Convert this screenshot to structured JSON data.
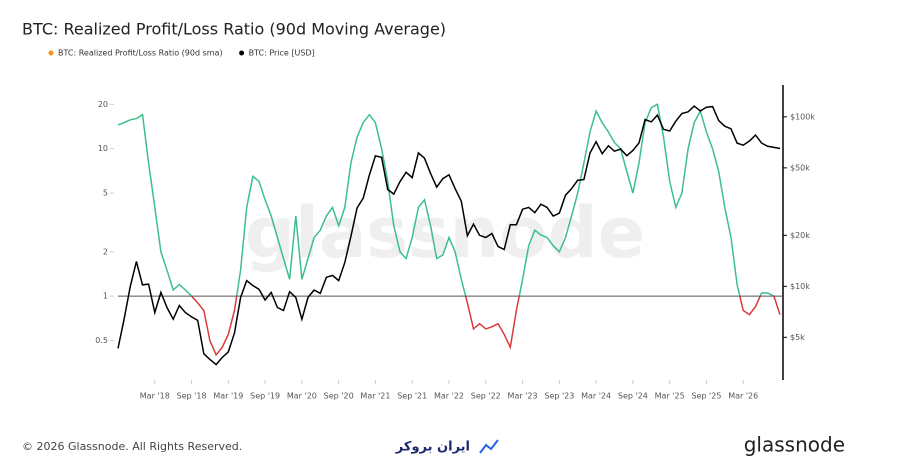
{
  "chart_data": {
    "type": "line",
    "title": "BTC: Realized Profit/Loss Ratio (90d Moving Average)",
    "watermark": "glassnode",
    "footer": "© 2026 Glassnode. All Rights Reserved.",
    "partner": "ایران بروکر",
    "brand": "glassnode",
    "x": [
      "2017-09",
      "2017-10",
      "2017-11",
      "2017-12",
      "2018-01",
      "2018-02",
      "2018-03",
      "2018-04",
      "2018-05",
      "2018-06",
      "2018-07",
      "2018-08",
      "2018-09",
      "2018-10",
      "2018-11",
      "2018-12",
      "2019-01",
      "2019-02",
      "2019-03",
      "2019-04",
      "2019-05",
      "2019-06",
      "2019-07",
      "2019-08",
      "2019-09",
      "2019-10",
      "2019-11",
      "2019-12",
      "2020-01",
      "2020-02",
      "2020-03",
      "2020-04",
      "2020-05",
      "2020-06",
      "2020-07",
      "2020-08",
      "2020-09",
      "2020-10",
      "2020-11",
      "2020-12",
      "2021-01",
      "2021-02",
      "2021-03",
      "2021-04",
      "2021-05",
      "2021-06",
      "2021-07",
      "2021-08",
      "2021-09",
      "2021-10",
      "2021-11",
      "2021-12",
      "2022-01",
      "2022-02",
      "2022-03",
      "2022-04",
      "2022-05",
      "2022-06",
      "2022-07",
      "2022-08",
      "2022-09",
      "2022-10",
      "2022-11",
      "2022-12",
      "2023-01",
      "2023-02",
      "2023-03",
      "2023-04",
      "2023-05",
      "2023-06",
      "2023-07",
      "2023-08",
      "2023-09",
      "2023-10",
      "2023-11",
      "2023-12",
      "2024-01",
      "2024-02",
      "2024-03",
      "2024-04",
      "2024-05",
      "2024-06",
      "2024-07",
      "2024-08",
      "2024-09",
      "2024-10",
      "2024-11",
      "2024-12",
      "2025-01",
      "2025-02",
      "2025-03",
      "2025-04",
      "2025-05",
      "2025-06",
      "2025-07",
      "2025-08",
      "2025-09",
      "2025-10",
      "2025-11",
      "2025-12",
      "2026-01",
      "2026-02",
      "2026-03",
      "2026-04",
      "2026-05",
      "2026-06",
      "2026-07",
      "2026-08",
      "2026-09"
    ],
    "series": [
      {
        "name": "BTC: Realized Profit/Loss Ratio (90d sma)",
        "color": "#f7931a",
        "line_color_above": "#3cbf8a",
        "line_color_below": "#d93a3a",
        "threshold": 1,
        "values": [
          14.5,
          15,
          15.7,
          16,
          17,
          8,
          4,
          2,
          1.5,
          1.1,
          1.2,
          1.1,
          1.0,
          0.9,
          0.8,
          0.5,
          0.4,
          0.45,
          0.55,
          0.8,
          1.5,
          4,
          6.5,
          6,
          4.5,
          3.5,
          2.5,
          1.8,
          1.3,
          3.5,
          1.3,
          1.8,
          2.5,
          2.8,
          3.5,
          4,
          3,
          4,
          8,
          12,
          15,
          17,
          15,
          10,
          6,
          3,
          2.0,
          1.8,
          2.5,
          4,
          4.5,
          3,
          1.8,
          1.9,
          2.5,
          2,
          1.3,
          0.9,
          0.6,
          0.65,
          0.6,
          0.62,
          0.65,
          0.55,
          0.45,
          0.8,
          1.3,
          2.2,
          2.8,
          2.6,
          2.5,
          2.2,
          2.0,
          2.5,
          3.5,
          5,
          8,
          13,
          18,
          15,
          13,
          11,
          10,
          7,
          5,
          8,
          15,
          19,
          20,
          12,
          6,
          4,
          5,
          10,
          15,
          18,
          13,
          10,
          7,
          4,
          2.5,
          1.2,
          0.8,
          0.75,
          0.85,
          1.05,
          1.05,
          1.0,
          0.75
        ]
      },
      {
        "name": "BTC: Price [USD]",
        "color": "#000000",
        "axis": "y2",
        "values": [
          4300,
          6400,
          10000,
          14000,
          10200,
          10300,
          7000,
          9200,
          7500,
          6400,
          7700,
          7000,
          6600,
          6300,
          4000,
          3700,
          3450,
          3800,
          4100,
          5300,
          8600,
          10800,
          10100,
          9600,
          8300,
          9200,
          7500,
          7200,
          9300,
          8600,
          6400,
          8600,
          9500,
          9100,
          11300,
          11600,
          10800,
          13800,
          19700,
          29000,
          33100,
          45200,
          58800,
          57700,
          37300,
          35000,
          41500,
          47100,
          43800,
          61300,
          57000,
          46300,
          38500,
          43200,
          45500,
          37700,
          31800,
          19900,
          23300,
          20000,
          19400,
          20500,
          17200,
          16500,
          23100,
          23100,
          28500,
          29200,
          27200,
          30500,
          29200,
          26000,
          27000,
          34500,
          37700,
          42300,
          42600,
          61200,
          71300,
          60600,
          67500,
          62700,
          64600,
          59000,
          63300,
          70200,
          96400,
          93400,
          102400,
          84400,
          82500,
          94200,
          104600,
          107100,
          115700,
          108200,
          114000,
          115000,
          95000,
          88000,
          85000,
          70000,
          68000,
          72000,
          78000,
          70000,
          67000,
          66000,
          65000
        ]
      }
    ],
    "xlim": [
      "2017-09",
      "2026-09"
    ],
    "xticks": [
      {
        "value": "2018-03",
        "label": "Mar '18"
      },
      {
        "value": "2018-09",
        "label": "Sep '18"
      },
      {
        "value": "2019-03",
        "label": "Mar '19"
      },
      {
        "value": "2019-09",
        "label": "Sep '19"
      },
      {
        "value": "2020-03",
        "label": "Mar '20"
      },
      {
        "value": "2020-09",
        "label": "Sep '20"
      },
      {
        "value": "2021-03",
        "label": "Mar '21"
      },
      {
        "value": "2021-09",
        "label": "Sep '21"
      },
      {
        "value": "2022-03",
        "label": "Mar '22"
      },
      {
        "value": "2022-09",
        "label": "Sep '22"
      },
      {
        "value": "2023-03",
        "label": "Mar '23"
      },
      {
        "value": "2023-09",
        "label": "Sep '23"
      },
      {
        "value": "2024-03",
        "label": "Mar '24"
      },
      {
        "value": "2024-09",
        "label": "Sep '24"
      },
      {
        "value": "2025-03",
        "label": "Mar '25"
      },
      {
        "value": "2025-09",
        "label": "Sep '25"
      },
      {
        "value": "2026-03",
        "label": "Mar '26"
      }
    ],
    "ylog": true,
    "ylim": [
      0.27,
      25
    ],
    "yticks": [
      0.5,
      1,
      2,
      5,
      10,
      20
    ],
    "y2log": true,
    "y2lim": [
      2800,
      144000
    ],
    "y2ticks": [
      {
        "value": 5000,
        "label": "$5k"
      },
      {
        "value": 10000,
        "label": "$10k"
      },
      {
        "value": 20000,
        "label": "$20k"
      },
      {
        "value": 50000,
        "label": "$50k"
      },
      {
        "value": 100000,
        "label": "$100k"
      }
    ],
    "legend": "top-left"
  }
}
